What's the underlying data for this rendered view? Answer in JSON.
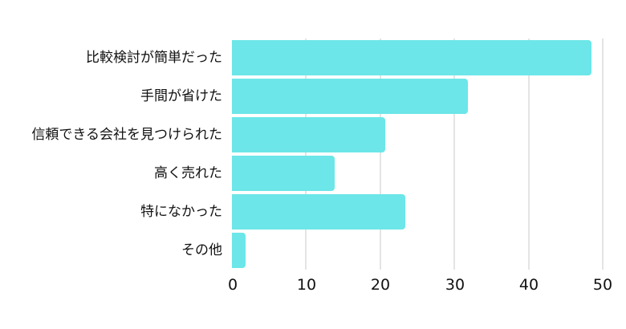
{
  "chart_data": {
    "type": "bar",
    "orientation": "horizontal",
    "title": "",
    "xlabel": "",
    "ylabel": "",
    "categories": [
      "比較検討が簡単だった",
      "手間が省けた",
      "信頼できる会社を見つけられた",
      "高く売れた",
      "特になかった",
      "その他"
    ],
    "values": [
      48.5,
      31.8,
      20.7,
      13.9,
      23.4,
      1.8
    ],
    "xlim": [
      0,
      50
    ],
    "xticks": [
      0,
      10,
      20,
      30,
      40,
      50
    ],
    "grid": true,
    "legend": null,
    "bar_color": "#6ce6e8"
  },
  "axis": {
    "ticks": [
      "0",
      "10",
      "20",
      "30",
      "40",
      "50"
    ]
  },
  "labels": [
    "比較検討が簡単だった",
    "手間が省けた",
    "信頼できる会社を見つけられた",
    "高く売れた",
    "特になかった",
    "その他"
  ]
}
